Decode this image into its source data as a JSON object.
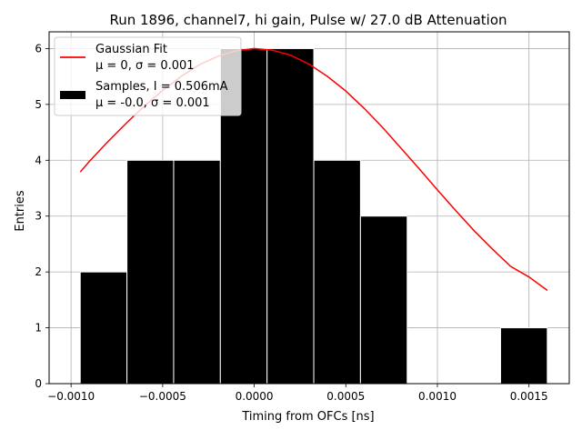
{
  "chart_data": {
    "type": "bar",
    "title": "Run 1896, channel7, hi gain, Pulse w/ 27.0 dB Attenuation",
    "xlabel": "Timing from OFCs [ns]",
    "ylabel": "Entries",
    "xlim": [
      -0.00112,
      0.00172
    ],
    "ylim": [
      0,
      6.3
    ],
    "grid": true,
    "legend_position": "top-left",
    "x_ticks": [
      {
        "value": -0.001,
        "label": "−0.0010"
      },
      {
        "value": -0.0005,
        "label": "−0.0005"
      },
      {
        "value": 0.0,
        "label": "0.0000"
      },
      {
        "value": 0.0005,
        "label": "0.0005"
      },
      {
        "value": 0.001,
        "label": "0.0010"
      },
      {
        "value": 0.0015,
        "label": "0.0015"
      }
    ],
    "y_ticks": [
      {
        "value": 0,
        "label": "0"
      },
      {
        "value": 1,
        "label": "1"
      },
      {
        "value": 2,
        "label": "2"
      },
      {
        "value": 3,
        "label": "3"
      },
      {
        "value": 4,
        "label": "4"
      },
      {
        "value": 5,
        "label": "5"
      },
      {
        "value": 6,
        "label": "6"
      }
    ],
    "histogram": {
      "name": "Samples, I = 0.506mA",
      "stats_label": "μ = -0.0, σ = 0.001",
      "color": "#000000",
      "edge_color": "#ffffff",
      "bin_edges": [
        -0.00095,
        -0.000695,
        -0.00044,
        -0.000185,
        7e-05,
        0.000325,
        0.00058,
        0.000835,
        0.00109,
        0.001345,
        0.0016
      ],
      "counts": [
        2,
        4,
        4,
        6,
        6,
        4,
        3,
        0,
        0,
        1
      ]
    },
    "fit_curve": {
      "name": "Gaussian Fit",
      "stats_label": "μ = 0, σ = 0.001",
      "color": "#ff0000",
      "x": [
        -0.00095,
        -0.0009,
        -0.0008,
        -0.0007,
        -0.0006,
        -0.0005,
        -0.0004,
        -0.0003,
        -0.0002,
        -0.0001,
        0.0,
        0.0001,
        0.0002,
        0.0003,
        0.0004,
        0.0005,
        0.0006,
        0.0007,
        0.0008,
        0.0009,
        0.001,
        0.0011,
        0.0012,
        0.0013,
        0.0014,
        0.0015,
        0.0016
      ],
      "y": [
        3.79,
        3.98,
        4.33,
        4.66,
        4.97,
        5.25,
        5.5,
        5.71,
        5.86,
        5.96,
        6.0,
        5.97,
        5.88,
        5.72,
        5.5,
        5.24,
        4.93,
        4.59,
        4.22,
        3.85,
        3.47,
        3.1,
        2.74,
        2.41,
        2.1,
        1.91,
        1.67
      ]
    }
  }
}
